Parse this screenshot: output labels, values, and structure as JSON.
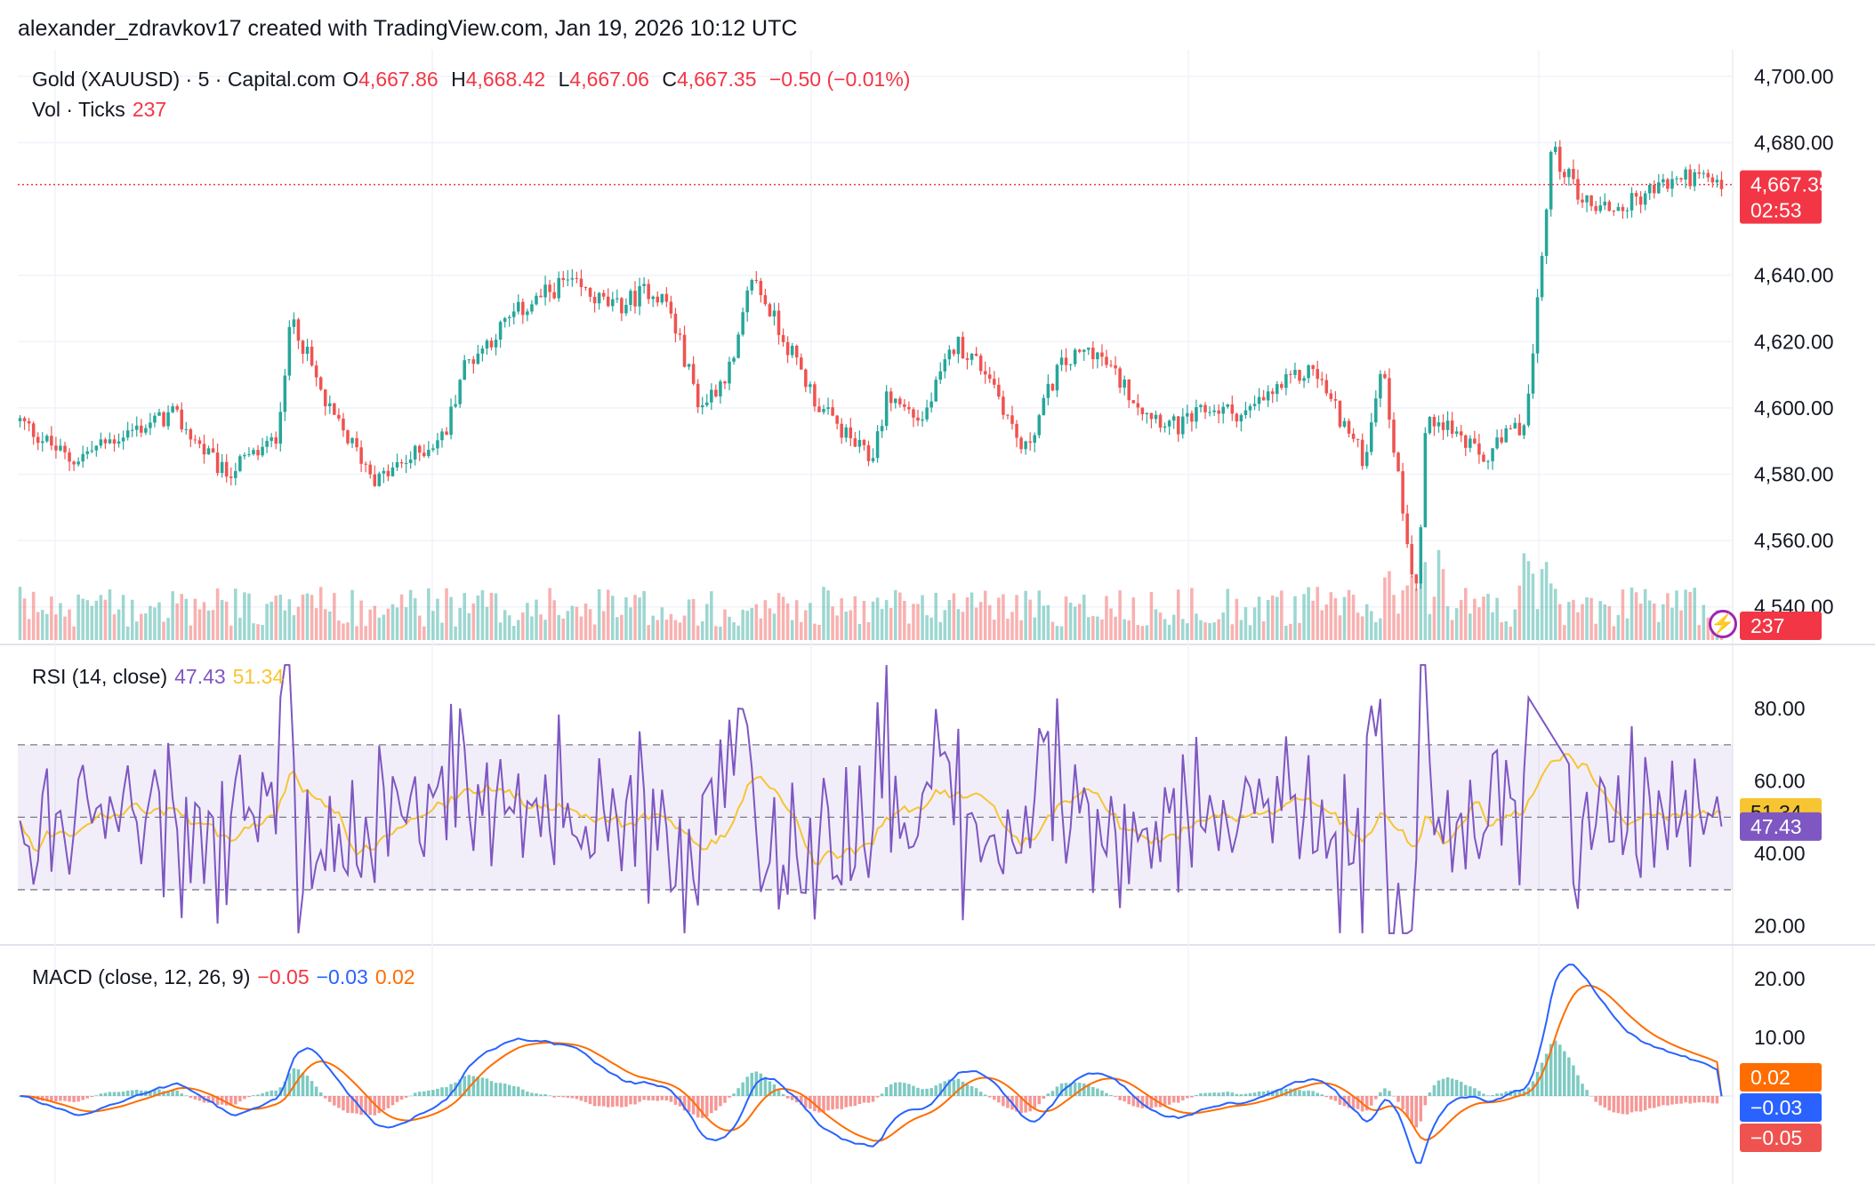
{
  "header": {
    "credit": "alexander_zdravkov17 created with TradingView.com, Jan 19, 2026 10:12 UTC"
  },
  "price_legend": {
    "symbol": "Gold (XAUUSD) · 5 · Capital.com",
    "open_label": "O",
    "open": "4,667.86",
    "high_label": "H",
    "high": "4,668.42",
    "low_label": "L",
    "low": "4,667.06",
    "close_label": "C",
    "close": "4,667.35",
    "change": "−0.50 (−0.01%)"
  },
  "vol_legend": {
    "label": "Vol · Ticks",
    "value": "237"
  },
  "rsi_legend": {
    "label": "RSI (14, close)",
    "rsi": "47.43",
    "ma": "51.34"
  },
  "macd_legend": {
    "label": "MACD (close, 12, 26, 9)",
    "hist": "−0.05",
    "macd": "−0.03",
    "signal": "0.02"
  },
  "badges": {
    "price": "4,667.35",
    "countdown": "02:53",
    "volume": "237",
    "rsi_ma": "51.34",
    "rsi": "47.43",
    "macd_signal": "0.02",
    "macd": "−0.03",
    "macd_hist": "−0.05"
  },
  "icons": {
    "alert": "lightning-icon"
  },
  "colors": {
    "up": "#26a69a",
    "down": "#ef5350",
    "rsi": "#7e57c2",
    "rsi_ma": "#f7c531",
    "macd": "#2962ff",
    "signal": "#ff6d00",
    "price_badge": "#f23645"
  },
  "chart_data": [
    {
      "type": "candlestick",
      "title": "Gold (XAUUSD) · 5 · Capital.com",
      "y_ticks": [
        "4,700.00",
        "4,680.00",
        "4,640.00",
        "4,620.00",
        "4,600.00",
        "4,580.00",
        "4,560.00",
        "4,540.00"
      ],
      "ylim": [
        4530,
        4708
      ],
      "last_close": 4667.35,
      "path_x": [
        0,
        0.03,
        0.06,
        0.09,
        0.12,
        0.15,
        0.16,
        0.18,
        0.21,
        0.25,
        0.26,
        0.29,
        0.32,
        0.35,
        0.37,
        0.38,
        0.4,
        0.42,
        0.43,
        0.45,
        0.47,
        0.5,
        0.51,
        0.53,
        0.55,
        0.57,
        0.59,
        0.61,
        0.63,
        0.66,
        0.68,
        0.7,
        0.72,
        0.74,
        0.76,
        0.79,
        0.8,
        0.82,
        0.823,
        0.825,
        0.833,
        0.86,
        0.875,
        0.885,
        0.89,
        0.9,
        0.92,
        0.94,
        0.96,
        0.98,
        1.0
      ],
      "path_y": [
        4596,
        4584,
        4592,
        4598,
        4580,
        4590,
        4628,
        4600,
        4578,
        4592,
        4612,
        4628,
        4638,
        4630,
        4636,
        4632,
        4600,
        4614,
        4640,
        4620,
        4600,
        4584,
        4604,
        4596,
        4620,
        4610,
        4586,
        4612,
        4618,
        4600,
        4594,
        4600,
        4598,
        4606,
        4612,
        4584,
        4614,
        4545,
        4560,
        4592,
        4598,
        4584,
        4592,
        4596,
        4620,
        4678,
        4662,
        4660,
        4666,
        4670,
        4667
      ],
      "volume": {
        "label": "Vol · Ticks",
        "last": 237
      }
    },
    {
      "type": "line",
      "title": "RSI (14, close)",
      "y_ticks": [
        "80.00",
        "60.00",
        "40.00",
        "20.00"
      ],
      "ylim": [
        16,
        94
      ],
      "bands": [
        30,
        70
      ],
      "series": [
        {
          "name": "RSI",
          "last": 47.43
        },
        {
          "name": "MA",
          "last": 51.34
        }
      ]
    },
    {
      "type": "line",
      "title": "MACD (close, 12, 26, 9)",
      "y_ticks": [
        "20.00",
        "10.00"
      ],
      "ylim": [
        -15,
        25
      ],
      "series": [
        {
          "name": "MACD",
          "last": -0.03
        },
        {
          "name": "Signal",
          "last": 0.02
        },
        {
          "name": "Histogram",
          "last": -0.05
        }
      ]
    }
  ]
}
